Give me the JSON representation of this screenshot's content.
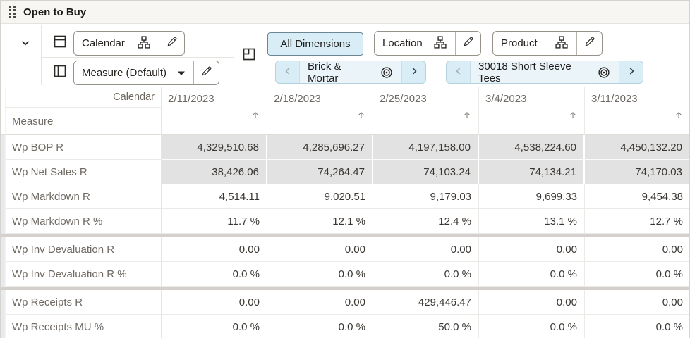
{
  "window": {
    "title": "Open to Buy"
  },
  "toolbar": {
    "rows_axis_label": "Calendar",
    "columns_axis_label": "Measure (Default)",
    "all_dimensions_label": "All Dimensions",
    "location_label": "Location",
    "product_label": "Product",
    "location_selection": "Brick & Mortar",
    "product_selection": "30018 Short Sleeve Tees"
  },
  "grid": {
    "column_dimension": "Calendar",
    "row_dimension": "Measure",
    "columns": [
      "2/11/2023",
      "2/18/2023",
      "2/25/2023",
      "3/4/2023",
      "3/11/2023"
    ],
    "rows": [
      {
        "label": "Wp BOP R",
        "shaded": true,
        "values": [
          "4,329,510.68",
          "4,285,696.27",
          "4,197,158.00",
          "4,538,224.60",
          "4,450,132.20"
        ]
      },
      {
        "label": "Wp Net Sales R",
        "shaded": true,
        "values": [
          "38,426.06",
          "74,264.47",
          "74,103.24",
          "74,134.21",
          "74,170.03"
        ]
      },
      {
        "label": "Wp Markdown R",
        "shaded": false,
        "values": [
          "4,514.11",
          "9,020.51",
          "9,179.03",
          "9,699.33",
          "9,454.38"
        ]
      },
      {
        "label": "Wp Markdown R %",
        "shaded": false,
        "values": [
          "11.7 %",
          "12.1 %",
          "12.4 %",
          "13.1 %",
          "12.7 %"
        ]
      },
      {
        "label": "Wp Inv Devaluation R",
        "shaded": false,
        "values": [
          "0.00",
          "0.00",
          "0.00",
          "0.00",
          "0.00"
        ]
      },
      {
        "label": "Wp Inv Devaluation R %",
        "shaded": false,
        "values": [
          "0.0 %",
          "0.0 %",
          "0.0 %",
          "0.0 %",
          "0.0 %"
        ]
      },
      {
        "label": "Wp Receipts R",
        "shaded": false,
        "values": [
          "0.00",
          "0.00",
          "429,446.47",
          "0.00",
          "0.00"
        ]
      },
      {
        "label": "Wp Receipts MU %",
        "shaded": false,
        "values": [
          "0.0 %",
          "0.0 %",
          "50.0 %",
          "0.0 %",
          "0.0 %"
        ]
      }
    ],
    "separators_after": [
      3,
      5
    ]
  },
  "colors": {
    "chip_highlight_bg": "#d9edf6",
    "shaded_cell_bg": "#e2e2e2",
    "header_text": "#6f6963",
    "value_text": "#3a3632"
  }
}
